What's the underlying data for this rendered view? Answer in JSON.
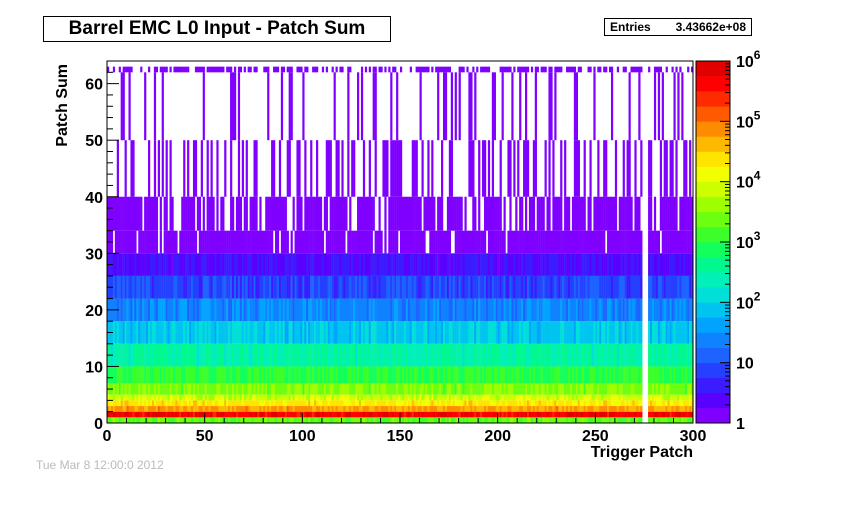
{
  "window": {
    "title": "Barrel EMC L0 Input - Patch Sum",
    "stats": {
      "label": "Entries",
      "value": "3.43662e+08"
    },
    "timestamp": "Tue Mar 8 12:00:0 2012"
  },
  "chart_data": {
    "type": "heatmap",
    "title": "Barrel EMC L0 Input - Patch Sum",
    "xlabel": "Trigger Patch",
    "ylabel": "Patch Sum",
    "xlim": [
      0,
      300
    ],
    "ylim": [
      0,
      64
    ],
    "x_ticks": [
      "0",
      "50",
      "100",
      "150",
      "200",
      "250",
      "300"
    ],
    "y_ticks": [
      "0",
      "10",
      "20",
      "30",
      "40",
      "50",
      "60"
    ],
    "z_scale": "log",
    "z_range": [
      1,
      1000000
    ],
    "z_ticks": [
      "1",
      "10",
      "10^2",
      "10^3",
      "10^4",
      "10^5",
      "10^6"
    ],
    "palette": [
      "#7f00ff",
      "#5a00ff",
      "#3a1cff",
      "#2540ff",
      "#1c63ff",
      "#0f82ff",
      "#00a4ff",
      "#00c4f0",
      "#00dfd8",
      "#00f0b8",
      "#00f88e",
      "#12ff5c",
      "#3cff2a",
      "#6cff10",
      "#9eff00",
      "#ccff00",
      "#f2ff00",
      "#ffe400",
      "#ffb800",
      "#ff8c00",
      "#ff5a00",
      "#ff2a00",
      "#ff0000",
      "#e00000"
    ],
    "rows": [
      {
        "y_low": 0,
        "y_high": 1,
        "count": 2000
      },
      {
        "y_low": 1,
        "y_high": 2,
        "count": 500000
      },
      {
        "y_low": 2,
        "y_high": 3,
        "count": 60000
      },
      {
        "y_low": 3,
        "y_high": 4,
        "count": 20000
      },
      {
        "y_low": 4,
        "y_high": 5,
        "count": 8000
      },
      {
        "y_low": 5,
        "y_high": 7,
        "count": 3000
      },
      {
        "y_low": 7,
        "y_high": 10,
        "count": 1000
      },
      {
        "y_low": 10,
        "y_high": 14,
        "count": 300
      },
      {
        "y_low": 14,
        "y_high": 18,
        "count": 80
      },
      {
        "y_low": 18,
        "y_high": 22,
        "count": 25
      },
      {
        "y_low": 22,
        "y_high": 26,
        "count": 8
      },
      {
        "y_low": 26,
        "y_high": 30,
        "count": 3
      },
      {
        "y_low": 30,
        "y_high": 34,
        "count": 1.5
      },
      {
        "y_low": 34,
        "y_high": 40,
        "count": 1
      },
      {
        "y_low": 40,
        "y_high": 50,
        "count": 1
      },
      {
        "y_low": 50,
        "y_high": 62,
        "count": 1
      },
      {
        "y_low": 62,
        "y_high": 63,
        "count": 1
      }
    ],
    "empty_columns": [
      274,
      275,
      276
    ],
    "grid": false
  }
}
